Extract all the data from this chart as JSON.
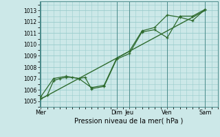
{
  "background_color": "#cce8e8",
  "grid_color": "#99cccc",
  "line_color": "#2d6a2d",
  "marker_color": "#2d6a2d",
  "xlabel": "Pression niveau de la mer( hPa )",
  "ylim": [
    1004.5,
    1013.8
  ],
  "yticks": [
    1005,
    1006,
    1007,
    1008,
    1009,
    1010,
    1011,
    1012,
    1013
  ],
  "x_day_labels": [
    "Mer",
    "Dim",
    "Jeu",
    "Ven",
    "Sam"
  ],
  "x_day_positions": [
    0.0,
    3.0,
    3.5,
    5.0,
    6.5
  ],
  "vline_positions": [
    0.0,
    3.0,
    3.5,
    5.0,
    6.5
  ],
  "xlim": [
    -0.05,
    7.0
  ],
  "series1_x": [
    0.0,
    0.25,
    0.5,
    0.75,
    1.0,
    1.25,
    1.5,
    1.75,
    2.0,
    2.5,
    3.0,
    3.5,
    4.0,
    4.5,
    5.0,
    5.5,
    6.0,
    6.5
  ],
  "series1_y": [
    1005.2,
    1005.5,
    1006.8,
    1007.0,
    1007.1,
    1007.1,
    1007.0,
    1007.1,
    1006.1,
    1006.3,
    1008.7,
    1009.2,
    1011.1,
    1011.3,
    1010.6,
    1012.5,
    1012.5,
    1013.1
  ],
  "series2_x": [
    0.0,
    0.5,
    1.0,
    1.5,
    2.0,
    2.5,
    3.0,
    3.5,
    4.0,
    4.5,
    5.0,
    5.5,
    6.0,
    6.5
  ],
  "series2_y": [
    1005.4,
    1007.0,
    1007.2,
    1007.0,
    1006.2,
    1006.4,
    1008.8,
    1009.4,
    1011.2,
    1011.5,
    1012.6,
    1012.4,
    1012.1,
    1013.1
  ],
  "trend_x": [
    0.0,
    6.5
  ],
  "trend_y": [
    1005.2,
    1013.0
  ]
}
